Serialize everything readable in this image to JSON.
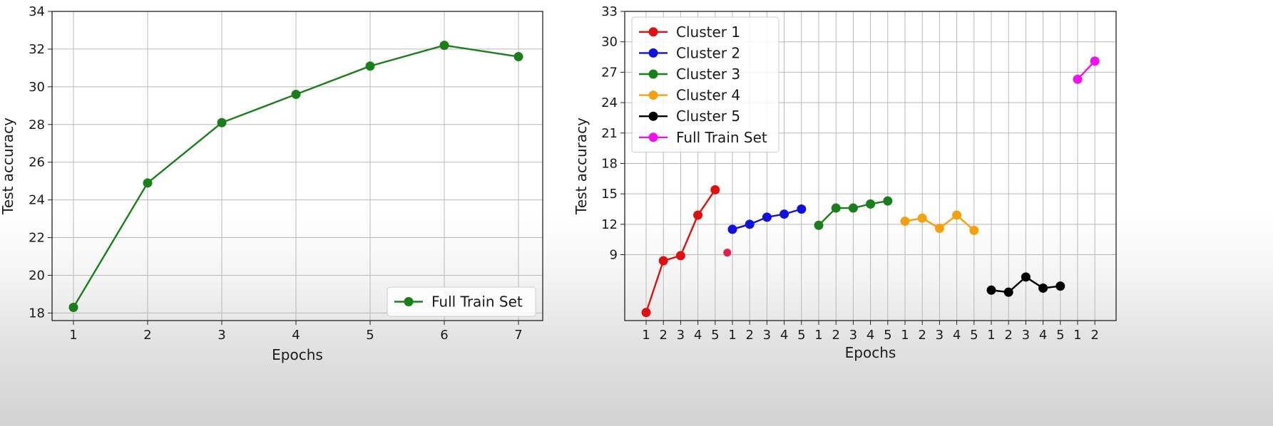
{
  "chart_data": [
    {
      "type": "line",
      "xlabel": "Epochs",
      "ylabel": "Test accuracy",
      "x": [
        1,
        2,
        3,
        4,
        5,
        6,
        7
      ],
      "xticks": [
        "1",
        "2",
        "3",
        "4",
        "5",
        "6",
        "7"
      ],
      "ylim": [
        17.6,
        34
      ],
      "yticks": [
        18,
        20,
        22,
        24,
        26,
        28,
        30,
        32,
        34
      ],
      "grid": true,
      "legend_position": "bottom-right",
      "series": [
        {
          "name": "Full Train Set",
          "color": "#1a7f1a",
          "values": [
            18.3,
            24.9,
            28.1,
            29.6,
            31.1,
            32.2,
            31.6
          ]
        }
      ]
    },
    {
      "type": "line",
      "xlabel": "Epochs",
      "ylabel": "Test accuracy",
      "xticks": [
        "1",
        "2",
        "3",
        "4",
        "5",
        "1",
        "2",
        "3",
        "4",
        "5",
        "1",
        "2",
        "3",
        "4",
        "5",
        "1",
        "2",
        "3",
        "4",
        "5",
        "1",
        "2",
        "3",
        "4",
        "5",
        "1",
        "2"
      ],
      "ylim": [
        2.5,
        33
      ],
      "yticks": [
        9,
        12,
        15,
        18,
        21,
        24,
        27,
        30,
        33
      ],
      "grid": true,
      "legend_position": "top-left",
      "series": [
        {
          "name": "Cluster 1",
          "color": "#e01010",
          "x": [
            1,
            2,
            3,
            4,
            5
          ],
          "values": [
            3.3,
            8.4,
            8.9,
            12.9,
            15.4
          ]
        },
        {
          "name": "Cluster 2",
          "color": "#1010e0",
          "x": [
            6,
            7,
            8,
            9,
            10
          ],
          "values": [
            11.5,
            12.0,
            12.7,
            13.0,
            13.5
          ]
        },
        {
          "name": "Cluster 3",
          "color": "#1a7f1a",
          "x": [
            11,
            12,
            13,
            14,
            15
          ],
          "values": [
            11.9,
            13.6,
            13.6,
            14.0,
            14.3
          ]
        },
        {
          "name": "Cluster 4",
          "color": "#f5a010",
          "x": [
            16,
            17,
            18,
            19,
            20
          ],
          "values": [
            12.3,
            12.6,
            11.6,
            12.9,
            11.4
          ]
        },
        {
          "name": "Cluster 5",
          "color": "#000000",
          "x": [
            21,
            22,
            23,
            24,
            25
          ],
          "values": [
            5.5,
            5.3,
            6.8,
            5.7,
            5.9
          ]
        },
        {
          "name": "Full Train Set",
          "color": "#f010f0",
          "x": [
            26,
            27
          ],
          "values": [
            26.3,
            28.1
          ]
        }
      ],
      "annotations": [
        {
          "x": 5.7,
          "y": 9.2,
          "color": "#e0204a"
        }
      ]
    }
  ]
}
